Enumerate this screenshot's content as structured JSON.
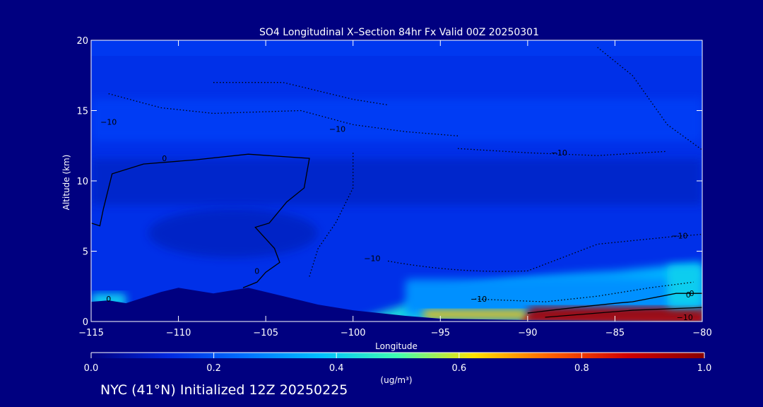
{
  "chart_data": {
    "type": "heatmap",
    "title": "SO4 Longitudinal X–Section 84hr  Fx Valid 00Z 20250301",
    "xlabel": "Longitude",
    "ylabel": "Altitude (km)",
    "xlim": [
      -115,
      -80
    ],
    "ylim": [
      0,
      20
    ],
    "x_ticks": [
      -115,
      -110,
      -105,
      -100,
      -95,
      -90,
      -85,
      -80
    ],
    "x_tick_labels": [
      "−115",
      "−110",
      "−105",
      "−100",
      "−95",
      "−90",
      "−85",
      "−80"
    ],
    "y_ticks": [
      0,
      5,
      10,
      15,
      20
    ],
    "y_tick_labels": [
      "0",
      "5",
      "10",
      "15",
      "20"
    ],
    "colorbar": {
      "min": 0.0,
      "max": 1.0,
      "ticks": [
        0.0,
        0.2,
        0.4,
        0.6,
        0.8,
        1.0
      ],
      "tick_labels": [
        "0.0",
        "0.2",
        "0.4",
        "0.6",
        "0.8",
        "1.0"
      ],
      "unit": "(ug/m³)",
      "colors": [
        "#000080",
        "#0028e0",
        "#0070ff",
        "#00c0ff",
        "#40ffb0",
        "#ffe000",
        "#ff6000",
        "#d00000",
        "#880000"
      ]
    },
    "terrain_km": [
      [
        -115,
        1.4
      ],
      [
        -114,
        1.5
      ],
      [
        -113,
        1.3
      ],
      [
        -112,
        1.7
      ],
      [
        -111,
        2.1
      ],
      [
        -110,
        2.4
      ],
      [
        -108,
        2.0
      ],
      [
        -107,
        2.2
      ],
      [
        -106,
        2.4
      ],
      [
        -104,
        1.8
      ],
      [
        -102,
        1.2
      ],
      [
        -100,
        0.8
      ],
      [
        -97,
        0.4
      ],
      [
        -95,
        0.2
      ],
      [
        -90,
        0.1
      ],
      [
        -85,
        0.05
      ],
      [
        -80,
        0.0
      ]
    ],
    "field": {
      "background_low_km": [
        [
          -115,
          0.22
        ],
        [
          -105,
          0.12
        ],
        [
          -100,
          0.1
        ],
        [
          -95,
          0.08
        ],
        [
          -90,
          0.08
        ],
        [
          -85,
          0.1
        ],
        [
          -80,
          0.12
        ]
      ],
      "layers": [
        {
          "level": 0.3,
          "altitude_range_km": [
            0.5,
            3.0
          ],
          "lon_range": [
            -97,
            -80
          ]
        },
        {
          "level": 0.65,
          "altitude_range_km": [
            0.2,
            0.8
          ],
          "lon_range": [
            -96,
            -90
          ]
        },
        {
          "level": 0.95,
          "altitude_range_km": [
            0.2,
            1.0
          ],
          "lon_range": [
            -90,
            -80
          ]
        },
        {
          "level": 0.4,
          "altitude_range_km": [
            1.0,
            4.0
          ],
          "lon_range": [
            -82,
            -80
          ]
        },
        {
          "level": 0.4,
          "altitude_range_km": [
            1.0,
            2.0
          ],
          "lon_range": [
            -115,
            -113
          ]
        }
      ]
    },
    "contours": [
      {
        "value": 0,
        "style": "solid",
        "label": "0"
      },
      {
        "value": -10,
        "style": "dotted",
        "label": "−10"
      }
    ],
    "contour_labels": [
      {
        "text": "0",
        "lon": -110.8,
        "alt": 11.6
      },
      {
        "text": "0",
        "lon": -114.0,
        "alt": 1.6
      },
      {
        "text": "0",
        "lon": -105.5,
        "alt": 3.6
      },
      {
        "text": "0",
        "lon": -80.8,
        "alt": 1.9
      },
      {
        "text": "0",
        "lon": -80.6,
        "alt": 2.0
      },
      {
        "text": "−10",
        "lon": -114.0,
        "alt": 14.2
      },
      {
        "text": "−10",
        "lon": -100.9,
        "alt": 13.7
      },
      {
        "text": "−10",
        "lon": -88.2,
        "alt": 12.0
      },
      {
        "text": "−10",
        "lon": -98.9,
        "alt": 4.5
      },
      {
        "text": "−10",
        "lon": -92.8,
        "alt": 1.6
      },
      {
        "text": "−10",
        "lon": -81.3,
        "alt": 6.1
      },
      {
        "text": "−10",
        "lon": -81.0,
        "alt": 0.3
      }
    ]
  },
  "footer": "NYC (41°N) Initialized 12Z 20250225"
}
